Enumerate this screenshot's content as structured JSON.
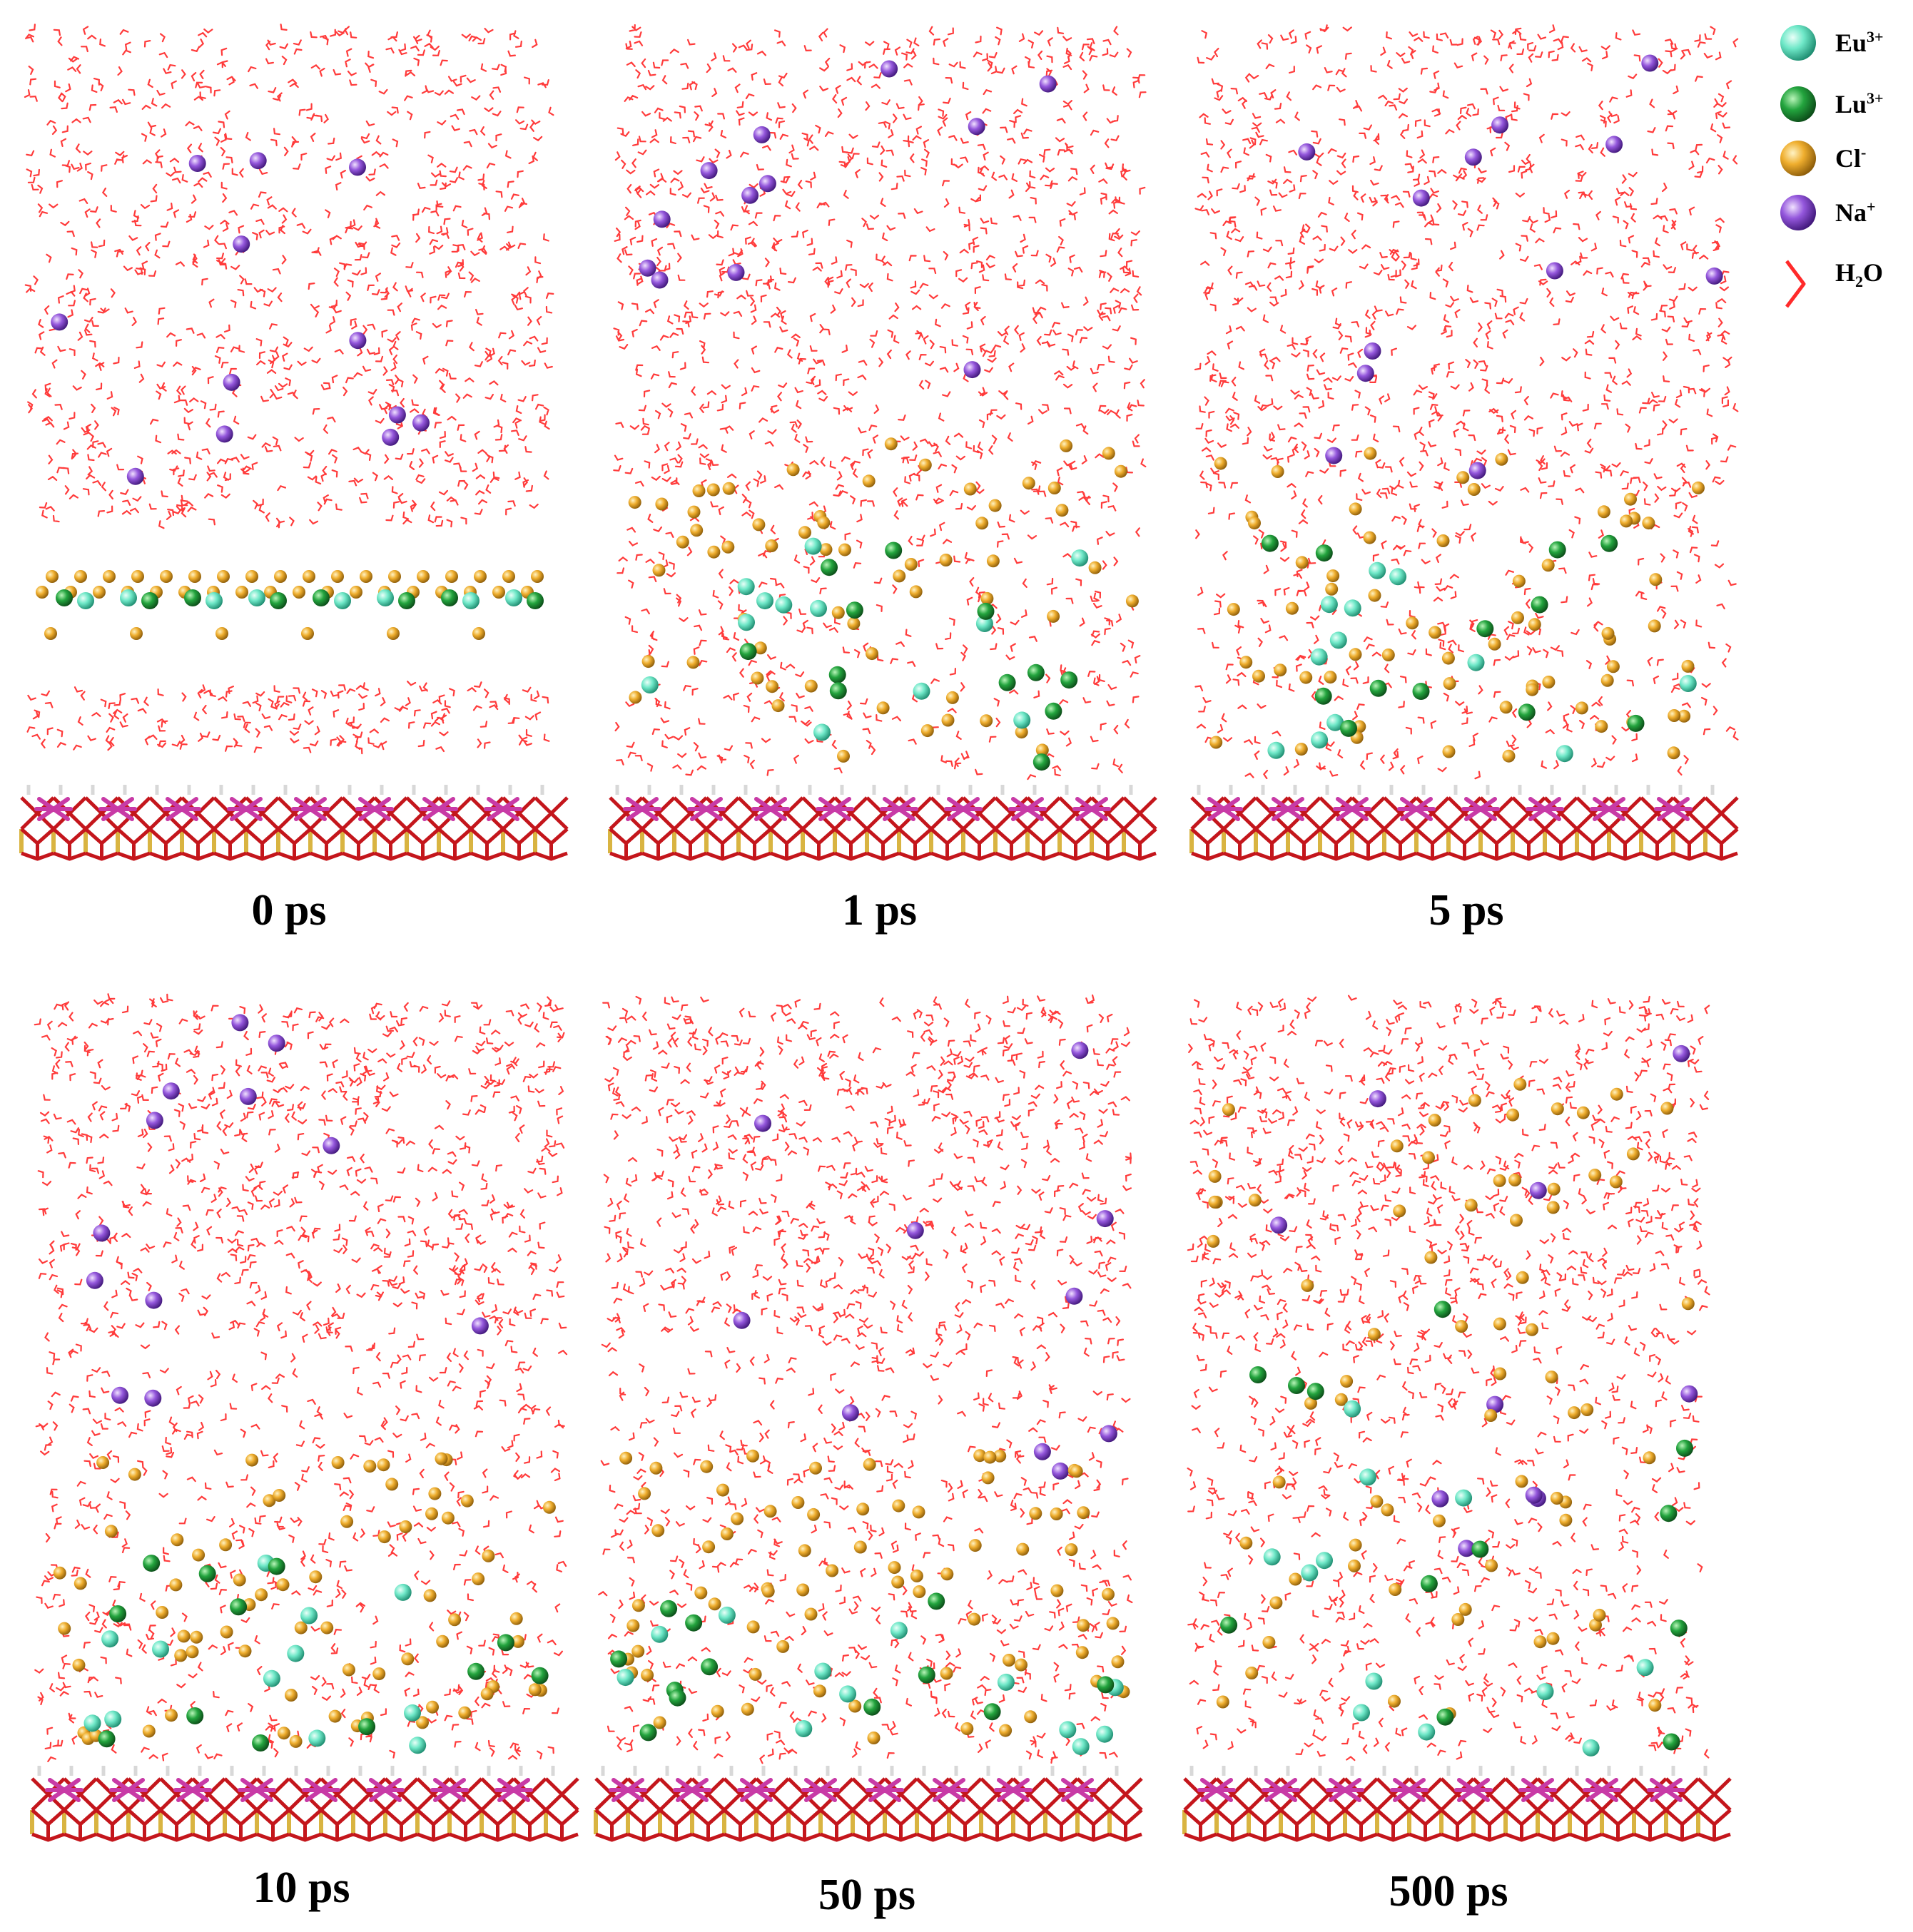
{
  "panels": [
    {
      "label": "0 ps",
      "stage": 0
    },
    {
      "label": "1 ps",
      "stage": 1
    },
    {
      "label": "5 ps",
      "stage": 2
    },
    {
      "label": "10 ps",
      "stage": 3
    },
    {
      "label": "50 ps",
      "stage": 4
    },
    {
      "label": "500 ps",
      "stage": 5
    }
  ],
  "legend": [
    {
      "species": "Eu",
      "charge": "3+",
      "color": "#5fe3c0",
      "icon": "sphere"
    },
    {
      "species": "Lu",
      "charge": "3+",
      "color": "#1f9a3a",
      "icon": "sphere"
    },
    {
      "species": "Cl",
      "charge": "-",
      "color": "#e8a52b",
      "icon": "sphere"
    },
    {
      "species": "Na",
      "charge": "+",
      "color": "#8a4fd6",
      "icon": "sphere"
    },
    {
      "species": "H",
      "sub": "2",
      "species2": "O",
      "color": "#ff2a2a",
      "icon": "bent-stick"
    }
  ],
  "colors": {
    "water": "#ff3b3b",
    "substrate_red": "#c4161c",
    "substrate_magenta": "#c83aa6",
    "substrate_yellow": "#d9b441",
    "substrate_white": "#d8d8d8"
  }
}
